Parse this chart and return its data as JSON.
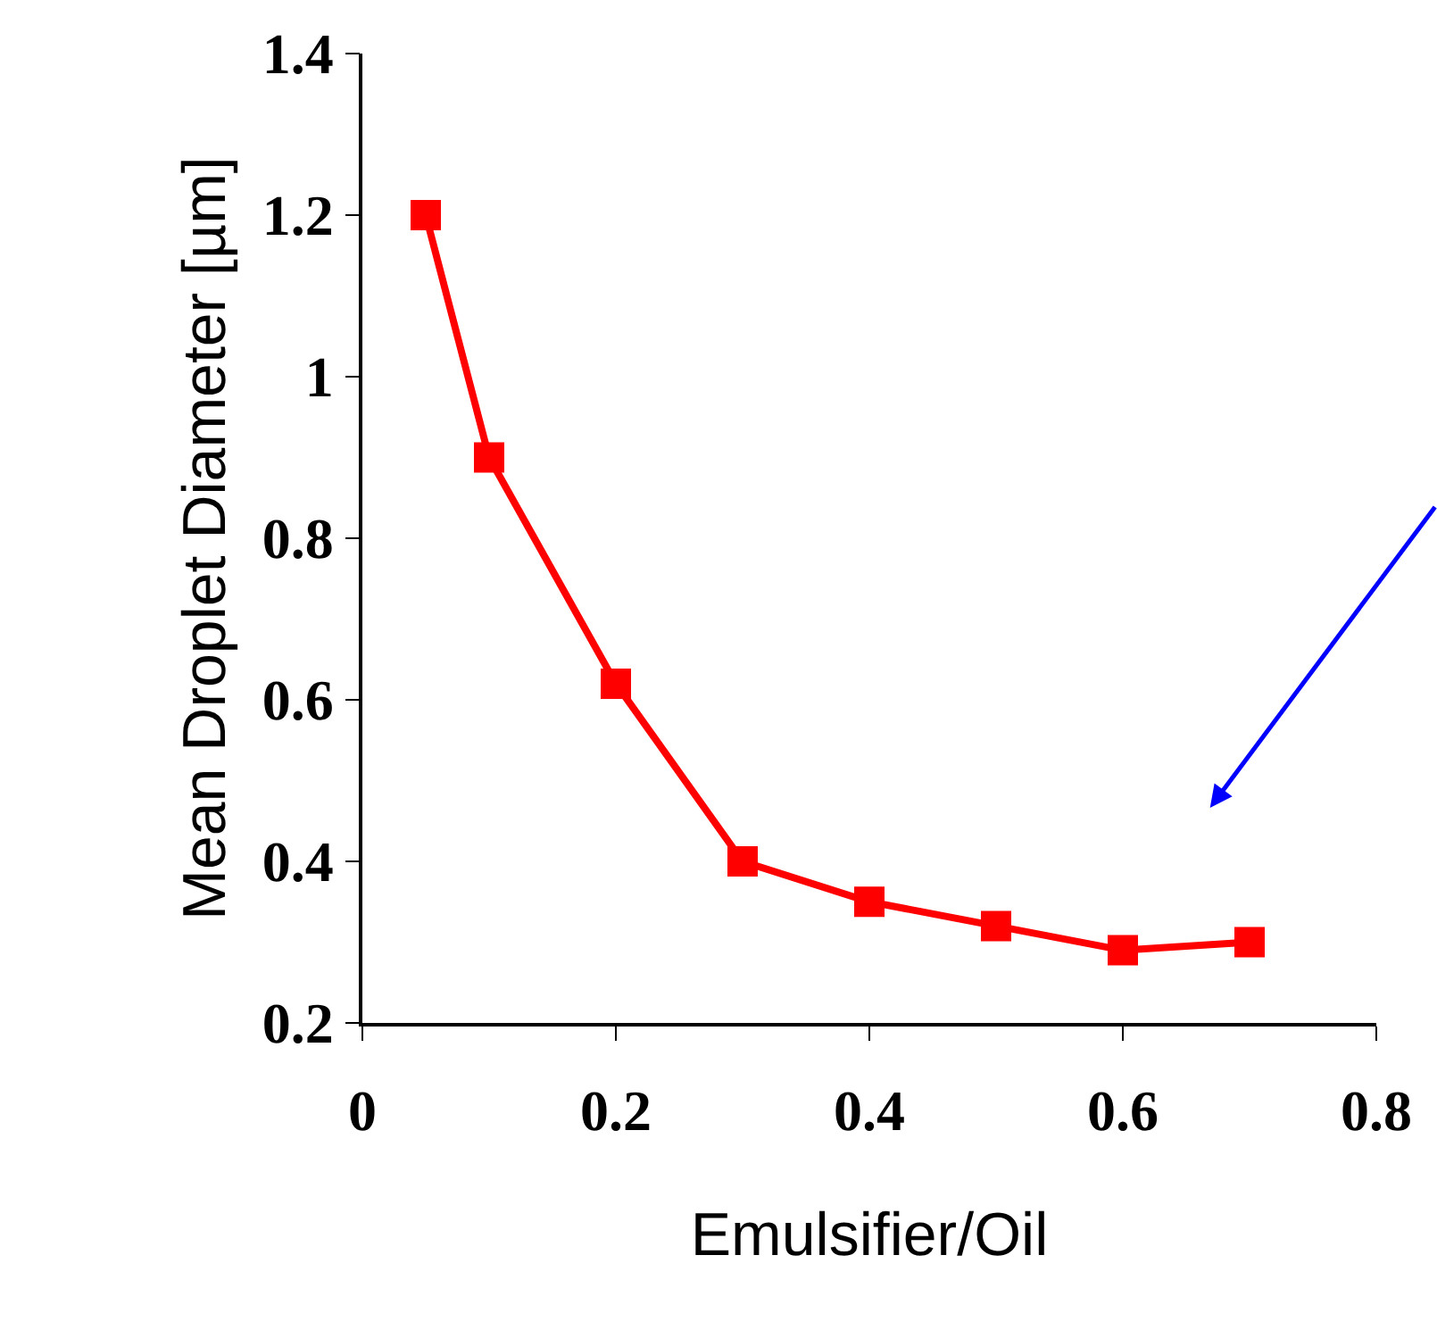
{
  "chart_data": {
    "type": "line",
    "xlabel": "Emulsifier/Oil",
    "ylabel": "Mean Droplet Diameter [µm]",
    "x": [
      0.05,
      0.1,
      0.2,
      0.3,
      0.4,
      0.5,
      0.6,
      0.7
    ],
    "series": [
      {
        "color": "#ff0000",
        "values": [
          1.2,
          0.9,
          0.62,
          0.4,
          0.35,
          0.32,
          0.29,
          0.3
        ]
      }
    ],
    "xlim": [
      0,
      0.8
    ],
    "xticks": [
      0,
      0.2,
      0.4,
      0.6,
      0.8
    ],
    "ylim": [
      0.2,
      1.4
    ],
    "yticks": [
      0.2,
      0.4,
      0.6,
      0.8,
      {
        "value": 1,
        "label": "1"
      },
      1.2,
      1.4
    ],
    "marker": "square",
    "line_style": "solid"
  }
}
